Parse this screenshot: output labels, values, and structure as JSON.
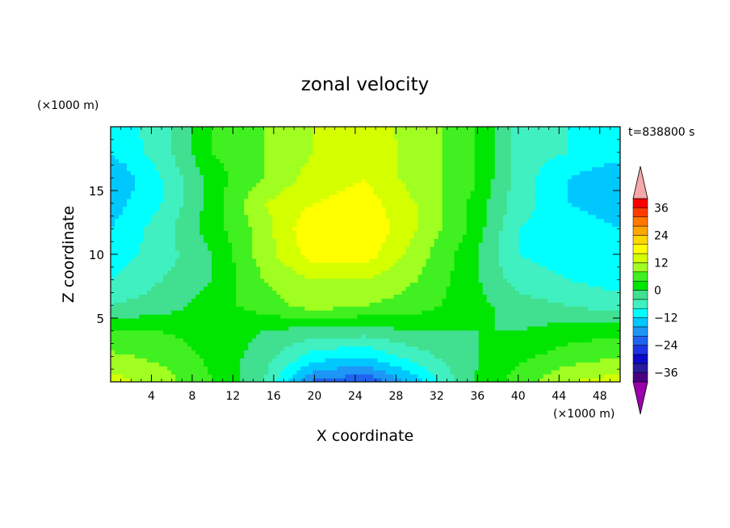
{
  "chart_data": {
    "type": "heatmap",
    "title": "zonal velocity",
    "xlabel": "X coordinate",
    "ylabel": "Z coordinate",
    "x_unit": "(×1000 m)",
    "y_unit": "(×1000 m)",
    "time_label": "t=838800 s",
    "xlim": [
      0,
      50
    ],
    "ylim": [
      0,
      20
    ],
    "x_ticks": [
      "4",
      "8",
      "12",
      "16",
      "20",
      "24",
      "28",
      "32",
      "36",
      "40",
      "44",
      "48"
    ],
    "y_ticks": [
      "5",
      "10",
      "15"
    ],
    "colorbar": {
      "labels": [
        "36",
        "24",
        "12",
        "0",
        "−12",
        "−24",
        "−36"
      ],
      "label_values": [
        36,
        24,
        12,
        0,
        -12,
        -24,
        -36
      ],
      "levels": [
        -40,
        -36,
        -32,
        -28,
        -24,
        -20,
        -16,
        -12,
        -8,
        -4,
        0,
        4,
        8,
        12,
        16,
        20,
        24,
        28,
        32,
        36,
        40
      ],
      "colors": [
        "#4b0082",
        "#2a1a9e",
        "#0a0ac8",
        "#1e32e6",
        "#1e64f0",
        "#1e96f5",
        "#00c8ff",
        "#00ffff",
        "#40f0c0",
        "#40e090",
        "#00e600",
        "#40f020",
        "#a0ff20",
        "#d4ff00",
        "#ffff00",
        "#ffd700",
        "#ffa500",
        "#ff7800",
        "#ff3c00",
        "#ff0000"
      ],
      "under_color": "#9900aa",
      "over_color": "#f4a8a8"
    },
    "field_nodes_x": [
      0,
      5,
      10,
      15,
      20,
      25,
      30,
      35,
      40,
      45,
      50
    ],
    "field_nodes_z": [
      0,
      2,
      4,
      6,
      8,
      10,
      12,
      14,
      16,
      18,
      20
    ],
    "field_values": [
      [
        14,
        10,
        4,
        -4,
        -21,
        -24,
        -14,
        -1,
        6,
        12,
        14
      ],
      [
        9,
        7,
        3,
        -2,
        -10,
        -12,
        -6,
        -1,
        3,
        6,
        8
      ],
      [
        4,
        4,
        2,
        0,
        -2,
        -2,
        0,
        0,
        0,
        2,
        3
      ],
      [
        -4,
        -2,
        2,
        6,
        10,
        8,
        6,
        2,
        -2,
        -4,
        -6
      ],
      [
        -8,
        -4,
        0,
        8,
        12,
        12,
        8,
        2,
        -6,
        -8,
        -10
      ],
      [
        -10,
        -6,
        0,
        10,
        18,
        18,
        10,
        2,
        -8,
        -10,
        -12
      ],
      [
        -12,
        -6,
        2,
        10,
        20,
        20,
        12,
        4,
        -8,
        -10,
        -12
      ],
      [
        -14,
        -8,
        2,
        12,
        16,
        18,
        12,
        4,
        -6,
        -12,
        -14
      ],
      [
        -16,
        -8,
        2,
        8,
        14,
        16,
        10,
        6,
        -6,
        -12,
        -16
      ],
      [
        -12,
        -6,
        4,
        8,
        12,
        16,
        10,
        6,
        -6,
        -8,
        -10
      ],
      [
        -10,
        -6,
        4,
        8,
        12,
        14,
        10,
        6,
        -6,
        -8,
        -8
      ]
    ]
  }
}
